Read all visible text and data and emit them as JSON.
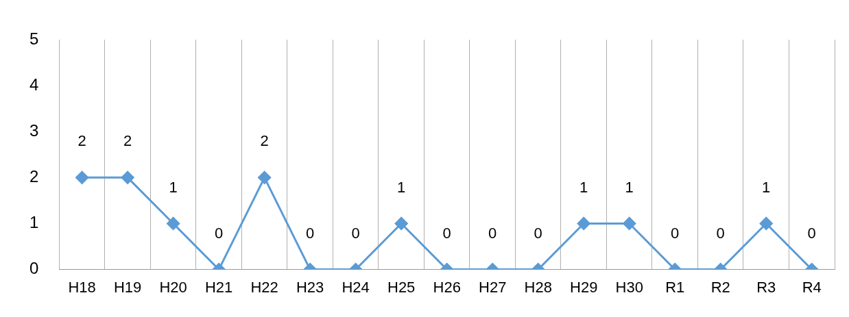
{
  "chart_data": {
    "type": "line",
    "categories": [
      "H18",
      "H19",
      "H20",
      "H21",
      "H22",
      "H23",
      "H24",
      "H25",
      "H26",
      "H27",
      "H28",
      "H29",
      "H30",
      "R1",
      "R2",
      "R3",
      "R4"
    ],
    "series": [
      {
        "color": "#5b9bd5",
        "values": [
          2,
          2,
          1,
          0,
          2,
          0,
          0,
          1,
          0,
          0,
          0,
          1,
          1,
          0,
          0,
          1,
          0
        ]
      }
    ],
    "ylim": [
      0,
      5
    ],
    "yticks": [
      0,
      1,
      2,
      3,
      4,
      5
    ],
    "grid": "x",
    "legend": false,
    "marker": "diamond",
    "line_style": "solid",
    "data_labels": true
  }
}
